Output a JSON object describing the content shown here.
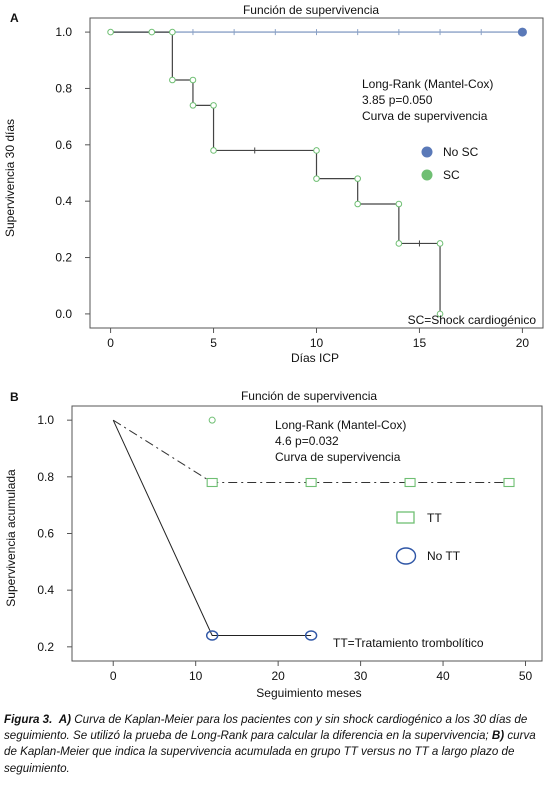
{
  "chart_data": [
    {
      "type": "line",
      "panel_label": "A",
      "title": "Función de supervivencia",
      "xlabel": "Días ICP",
      "ylabel": "Supervivencia 30 días",
      "xlim": [
        -1,
        21
      ],
      "ylim": [
        -0.05,
        1.05
      ],
      "xticks": [
        0,
        5,
        10,
        15,
        20
      ],
      "yticks": [
        0.0,
        0.2,
        0.4,
        0.6,
        0.8,
        1.0
      ],
      "ytick_labels": [
        "0.0",
        "0.2",
        "0.4",
        "0.6",
        "0.8",
        "1.0"
      ],
      "series": [
        {
          "name": "No SC",
          "color": "#8aa1c6",
          "marker_color": "#5a79b8",
          "steps": [
            [
              0,
              1.0
            ],
            [
              20,
              1.0
            ]
          ],
          "censored": [
            [
              3,
              1.0
            ],
            [
              4,
              1.0
            ],
            [
              6,
              1.0
            ],
            [
              8,
              1.0
            ],
            [
              10,
              1.0
            ],
            [
              12,
              1.0
            ],
            [
              14,
              1.0
            ],
            [
              16,
              1.0
            ],
            [
              18,
              1.0
            ]
          ],
          "end_marker": [
            20,
            1.0
          ]
        },
        {
          "name": "SC",
          "color": "#444444",
          "marker_color": "#6fbf73",
          "steps": [
            [
              0,
              1.0
            ],
            [
              3,
              0.83
            ],
            [
              4,
              0.74
            ],
            [
              5,
              0.58
            ],
            [
              10,
              0.48
            ],
            [
              12,
              0.39
            ],
            [
              14,
              0.25
            ],
            [
              16,
              0.0
            ]
          ],
          "markers": [
            [
              0,
              1.0
            ],
            [
              2,
              1.0
            ],
            [
              3,
              1.0
            ],
            [
              3,
              0.83
            ],
            [
              4,
              0.83
            ],
            [
              4,
              0.74
            ],
            [
              5,
              0.74
            ],
            [
              5,
              0.58
            ],
            [
              10,
              0.58
            ],
            [
              10,
              0.48
            ],
            [
              12,
              0.48
            ],
            [
              12,
              0.39
            ],
            [
              14,
              0.39
            ],
            [
              14,
              0.25
            ],
            [
              16,
              0.25
            ],
            [
              16,
              0.0
            ]
          ],
          "censored": [
            [
              7,
              0.58
            ],
            [
              15,
              0.25
            ]
          ]
        }
      ],
      "annotations": [
        "Long-Rank (Mantel-Cox)",
        "3.85 p=0.050",
        "Curva de supervivencia",
        "SC=Shock cardiogénico"
      ],
      "legend": {
        "placement": "right",
        "entries": [
          "No SC",
          "SC"
        ]
      }
    },
    {
      "type": "line",
      "panel_label": "B",
      "title": "Función de supervivencia",
      "xlabel": "Seguimiento meses",
      "ylabel": "Supervivencia acumulada",
      "xlim": [
        -5,
        52
      ],
      "ylim": [
        0.15,
        1.05
      ],
      "xticks": [
        0,
        10,
        20,
        30,
        40,
        50
      ],
      "yticks": [
        0.2,
        0.4,
        0.6,
        0.8,
        1.0
      ],
      "ytick_labels": [
        "0.2",
        "0.4",
        "0.6",
        "0.8",
        "1.0"
      ],
      "series": [
        {
          "name": "TT",
          "color": "#333333",
          "marker_color": "#6fbf73",
          "dash": "dash-dot",
          "points": [
            [
              0,
              1.0
            ],
            [
              12,
              0.78
            ],
            [
              48,
              0.78
            ]
          ],
          "markers": [
            [
              12,
              0.78
            ],
            [
              24,
              0.78
            ],
            [
              36,
              0.78
            ],
            [
              48,
              0.78
            ]
          ],
          "extra_point": [
            12,
            1.0
          ]
        },
        {
          "name": "No TT",
          "color": "#222222",
          "marker_color": "#2f56a6",
          "points": [
            [
              0,
              1.0
            ],
            [
              12,
              0.24
            ],
            [
              24,
              0.24
            ]
          ],
          "markers": [
            [
              12,
              0.24
            ],
            [
              24,
              0.24
            ]
          ]
        }
      ],
      "annotations": [
        "Long-Rank (Mantel-Cox)",
        "4.6 p=0.032",
        "Curva de supervivencia",
        "TT=Tratamiento trombolítico"
      ],
      "legend": {
        "placement": "right",
        "entries": [
          "TT",
          "No TT"
        ]
      }
    }
  ],
  "caption": {
    "label": "Figura 3.",
    "a_marker": "A)",
    "a_text": "Curva de Kaplan-Meier para los pacientes con y sin shock cardiogénico a los 30 días de seguimiento. Se utilizó la prueba de Long-Rank para calcular la diferencia en la supervivencia;",
    "b_marker": "B)",
    "b_text": "curva de Kaplan-Meier que indica la supervivencia acumulada en grupo TT versus no TT a largo plazo de seguimiento."
  }
}
